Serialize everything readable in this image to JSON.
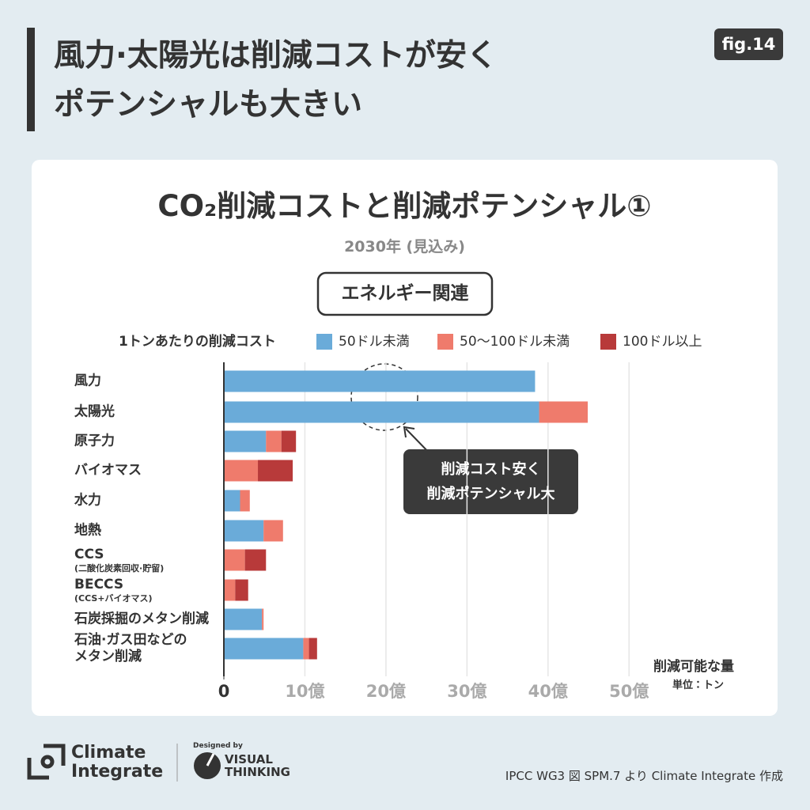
{
  "header": {
    "title": "風力·太陽光は削減コストが安く\nポテンシャルも大きい",
    "badge": "fig.14"
  },
  "chart_data": {
    "type": "bar",
    "orientation": "horizontal",
    "stacked": true,
    "title": "CO₂削減コストと削減ポテンシャル①",
    "subtitle": "2030年 (見込み)",
    "section_label": "エネルギー関連",
    "legend_title": "1トンあたりの削減コスト",
    "categories": [
      "風力",
      "太陽光",
      "原子力",
      "バイオマス",
      "水力",
      "地熱",
      "CCS",
      "BECCS",
      "石炭採掘のメタン削減",
      "石油·ガス田などの\nメタン削減"
    ],
    "category_notes": [
      null,
      null,
      null,
      null,
      null,
      null,
      "(二酸化炭素回収·貯留)",
      "(CCS+バイオマス)",
      null,
      null
    ],
    "series": [
      {
        "name": "50ドル未満",
        "color": "#6aabd9",
        "values": [
          38.4,
          38.9,
          5.2,
          0,
          2.0,
          4.9,
          0,
          0,
          4.7,
          9.8
        ]
      },
      {
        "name": "50〜100ドル未満",
        "color": "#ef7b6c",
        "values": [
          0,
          6.0,
          1.9,
          4.2,
          1.2,
          2.4,
          2.6,
          1.4,
          0.2,
          0.7
        ]
      },
      {
        "name": "100ドル以上",
        "color": "#b83a3a",
        "values": [
          0,
          0,
          1.8,
          4.3,
          0,
          0,
          2.6,
          1.6,
          0,
          1.0
        ]
      }
    ],
    "xlim": [
      0,
      53
    ],
    "xticks": [
      0,
      {
        "value": 10,
        "label": "10億"
      },
      {
        "value": 20,
        "label": "20億"
      },
      {
        "value": 30,
        "label": "30億"
      },
      {
        "value": 40,
        "label": "40億"
      },
      {
        "value": 50,
        "label": "50億"
      }
    ],
    "xlabel": "削減可能な量",
    "unit_note": "単位：トン",
    "annotation": "削減コスト安く\n削減ポテンシャル大",
    "grid": true
  },
  "footer": {
    "logo_line1": "Climate",
    "logo_line2": "Integrate",
    "designed_by": "Designed by",
    "designer_line1": "VISUAL",
    "designer_line2": "THINKING",
    "source": "IPCC WG3 図 SPM.7 より Climate Integrate 作成"
  }
}
